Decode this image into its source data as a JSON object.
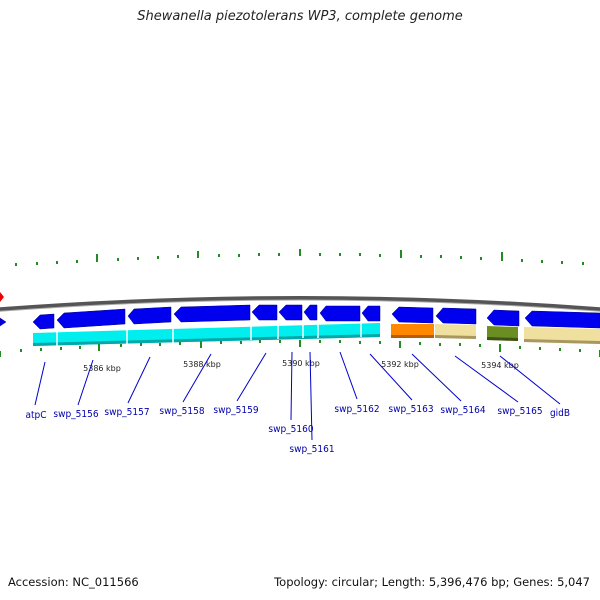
{
  "title": "Shewanella piezotolerans WP3, complete genome",
  "footer": {
    "accession": "Accession: NC_011566",
    "stats": "Topology: circular; Length: 5,396,476 bp; Genes: 5,047"
  },
  "colors": {
    "backbone": "#666666",
    "gene_blue": "#0000ee",
    "cds_cyan": "#00eeee",
    "rna_orange": "#ff8800",
    "misc_tan": "#f0e0a0",
    "misc_olive": "#6b8e23",
    "marker_red": "#ee0000",
    "tick_green": "#228b22",
    "label_blue": "#0000aa"
  },
  "scale_labels": [
    "5386 kbp",
    "5388 kbp",
    "5390 kbp",
    "5392 kbp",
    "5394 kbp"
  ],
  "gene_labels": [
    "atpC",
    "swp_5156",
    "swp_5157",
    "swp_5158",
    "swp_5159",
    "swp_5160",
    "swp_5161",
    "swp_5162",
    "swp_5163",
    "swp_5164",
    "swp_5165",
    "gidB"
  ]
}
